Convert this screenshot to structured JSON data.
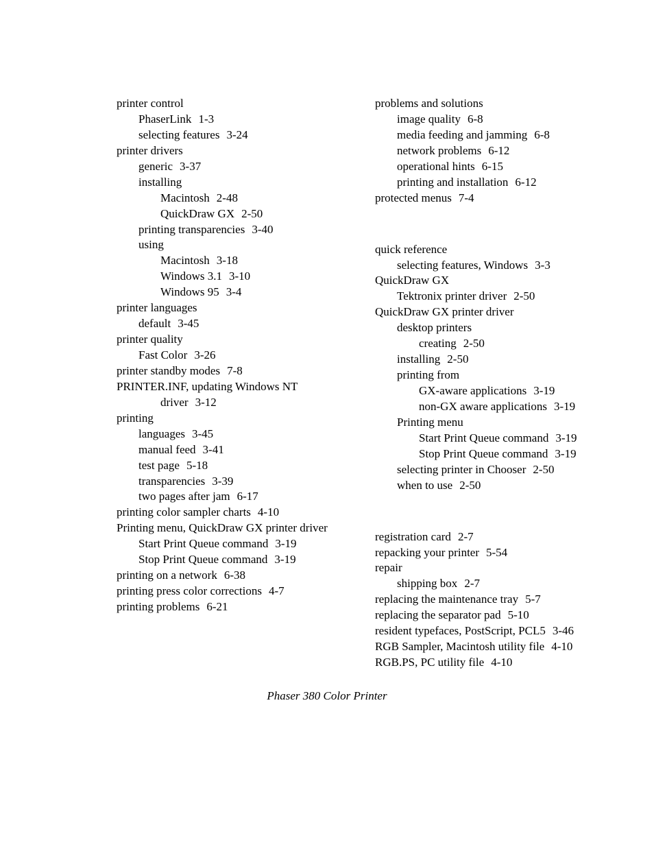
{
  "footer": "Phaser 380 Color Printer",
  "left": [
    {
      "lvl": 0,
      "t": "printer control"
    },
    {
      "lvl": 1,
      "t": "PhaserLink",
      "pg": "1-3"
    },
    {
      "lvl": 1,
      "t": "selecting features",
      "pg": "3-24"
    },
    {
      "lvl": 0,
      "t": "printer drivers"
    },
    {
      "lvl": 1,
      "t": "generic",
      "pg": "3-37"
    },
    {
      "lvl": 1,
      "t": "installing"
    },
    {
      "lvl": 2,
      "t": "Macintosh",
      "pg": "2-48"
    },
    {
      "lvl": 2,
      "t": "QuickDraw GX",
      "pg": "2-50"
    },
    {
      "lvl": 1,
      "t": "printing transparencies",
      "pg": "3-40"
    },
    {
      "lvl": 1,
      "t": "using"
    },
    {
      "lvl": 2,
      "t": "Macintosh",
      "pg": "3-18"
    },
    {
      "lvl": 2,
      "t": "Windows 3.1",
      "pg": "3-10"
    },
    {
      "lvl": 2,
      "t": "Windows 95",
      "pg": "3-4"
    },
    {
      "lvl": 0,
      "t": "printer languages"
    },
    {
      "lvl": 1,
      "t": "default",
      "pg": "3-45"
    },
    {
      "lvl": 0,
      "t": "printer quality"
    },
    {
      "lvl": 1,
      "t": "Fast Color",
      "pg": "3-26"
    },
    {
      "lvl": 0,
      "t": "printer standby modes",
      "pg": "7-8"
    },
    {
      "lvl": 0,
      "t": "PRINTER.INF, updating Windows NT"
    },
    {
      "lvl": 2,
      "t": "driver",
      "pg": "3-12"
    },
    {
      "lvl": 0,
      "t": "printing"
    },
    {
      "lvl": 1,
      "t": "languages",
      "pg": "3-45"
    },
    {
      "lvl": 1,
      "t": "manual feed",
      "pg": "3-41"
    },
    {
      "lvl": 1,
      "t": "test page",
      "pg": "5-18"
    },
    {
      "lvl": 1,
      "t": "transparencies",
      "pg": "3-39"
    },
    {
      "lvl": 1,
      "t": "two pages after jam",
      "pg": "6-17"
    },
    {
      "lvl": 0,
      "t": "printing color sampler charts",
      "pg": "4-10"
    },
    {
      "lvl": 0,
      "t": "Printing menu, QuickDraw GX printer driver"
    },
    {
      "lvl": 1,
      "t": "Start Print Queue command",
      "pg": "3-19"
    },
    {
      "lvl": 1,
      "t": "Stop Print Queue command",
      "pg": "3-19"
    },
    {
      "lvl": 0,
      "t": "printing on a network",
      "pg": "6-38"
    },
    {
      "lvl": 0,
      "t": "printing press color corrections",
      "pg": "4-7"
    },
    {
      "lvl": 0,
      "t": "printing problems",
      "pg": "6-21"
    }
  ],
  "right": [
    {
      "lvl": 0,
      "t": "problems and solutions"
    },
    {
      "lvl": 1,
      "t": "image quality",
      "pg": "6-8"
    },
    {
      "lvl": 1,
      "t": "media feeding and jamming",
      "pg": "6-8"
    },
    {
      "lvl": 1,
      "t": "network problems",
      "pg": "6-12"
    },
    {
      "lvl": 1,
      "t": "operational hints",
      "pg": "6-15"
    },
    {
      "lvl": 1,
      "t": "printing and installation",
      "pg": "6-12"
    },
    {
      "lvl": 0,
      "t": "protected menus",
      "pg": "7-4"
    },
    {
      "lvl": 0,
      "t": "quick reference",
      "cls": "q-gap"
    },
    {
      "lvl": 1,
      "t": "selecting features, Windows",
      "pg": "3-3"
    },
    {
      "lvl": 0,
      "t": "QuickDraw GX"
    },
    {
      "lvl": 1,
      "t": "Tektronix printer driver",
      "pg": "2-50"
    },
    {
      "lvl": 0,
      "t": "QuickDraw GX printer driver"
    },
    {
      "lvl": 1,
      "t": "desktop printers"
    },
    {
      "lvl": 2,
      "t": "creating",
      "pg": "2-50"
    },
    {
      "lvl": 1,
      "t": "installing",
      "pg": "2-50"
    },
    {
      "lvl": 1,
      "t": "printing from"
    },
    {
      "lvl": 2,
      "t": "GX-aware applications",
      "pg": "3-19"
    },
    {
      "lvl": 2,
      "t": "non-GX aware applications",
      "pg": "3-19"
    },
    {
      "lvl": 1,
      "t": "Printing menu"
    },
    {
      "lvl": 2,
      "t": "Start Print Queue command",
      "pg": "3-19"
    },
    {
      "lvl": 2,
      "t": "Stop Print Queue command",
      "pg": "3-19"
    },
    {
      "lvl": 1,
      "t": "selecting printer in Chooser",
      "pg": "2-50"
    },
    {
      "lvl": 1,
      "t": "when to use",
      "pg": "2-50"
    },
    {
      "lvl": 0,
      "t": "registration card",
      "pg": "2-7",
      "cls": "r-gap"
    },
    {
      "lvl": 0,
      "t": "repacking your printer",
      "pg": "5-54"
    },
    {
      "lvl": 0,
      "t": "repair"
    },
    {
      "lvl": 1,
      "t": "shipping box",
      "pg": "2-7"
    },
    {
      "lvl": 0,
      "t": "replacing the maintenance tray",
      "pg": "5-7"
    },
    {
      "lvl": 0,
      "t": "replacing the separator pad",
      "pg": "5-10"
    },
    {
      "lvl": 0,
      "t": "resident typefaces, PostScript, PCL5",
      "pg": "3-46"
    },
    {
      "lvl": 0,
      "t": "RGB Sampler, Macintosh utility file",
      "pg": "4-10"
    },
    {
      "lvl": 0,
      "t": "RGB.PS, PC utility file",
      "pg": "4-10"
    }
  ]
}
